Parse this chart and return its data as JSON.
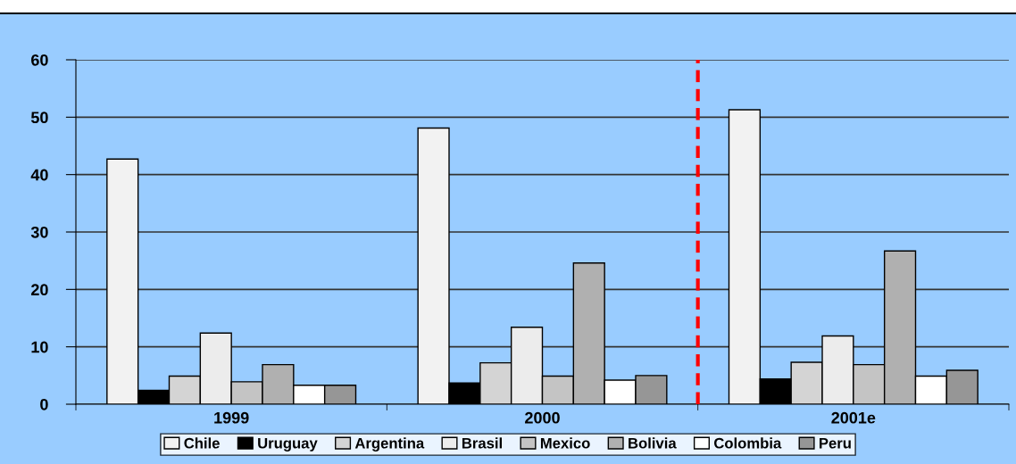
{
  "chart_data": {
    "type": "bar",
    "categories": [
      "1999",
      "2000",
      "2001e"
    ],
    "series": [
      {
        "name": "Chile",
        "color": "#f2f2f2",
        "values": [
          42.7,
          48.1,
          51.3
        ]
      },
      {
        "name": "Uruguay",
        "color": "#000000",
        "values": [
          2.4,
          3.7,
          4.4
        ]
      },
      {
        "name": "Argentina",
        "color": "#d4d4d4",
        "values": [
          4.9,
          7.2,
          7.3
        ]
      },
      {
        "name": "Brasil",
        "color": "#ececec",
        "values": [
          12.4,
          13.4,
          11.9
        ]
      },
      {
        "name": "Mexico",
        "color": "#c4c4c4",
        "values": [
          3.9,
          4.9,
          6.9
        ]
      },
      {
        "name": "Bolivia",
        "color": "#b0b0b0",
        "values": [
          6.9,
          24.6,
          26.7
        ]
      },
      {
        "name": "Colombia",
        "color": "#ffffff",
        "values": [
          3.3,
          4.2,
          4.9
        ]
      },
      {
        "name": "Peru",
        "color": "#969696",
        "values": [
          3.3,
          5.0,
          5.9
        ]
      }
    ],
    "ylim": [
      0,
      60
    ],
    "yticks": [
      0,
      10,
      20,
      30,
      40,
      50,
      60
    ],
    "grid": "y",
    "legend": "bottom"
  }
}
